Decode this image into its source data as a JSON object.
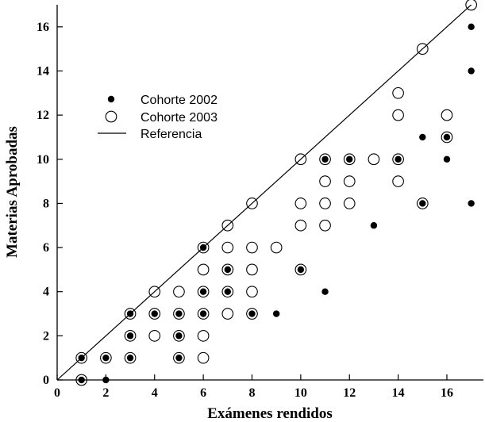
{
  "chart_data": {
    "type": "scatter",
    "title": "",
    "xlabel": "Exámenes rendidos",
    "ylabel": "Materias Aprobadas",
    "xlim": [
      0,
      17.5
    ],
    "ylim": [
      0,
      17
    ],
    "x_ticks": [
      0,
      2,
      4,
      6,
      8,
      10,
      12,
      14,
      16
    ],
    "y_ticks": [
      0,
      2,
      4,
      6,
      8,
      10,
      12,
      14,
      16
    ],
    "grid": false,
    "legend_position": "upper-left",
    "series": [
      {
        "name": "Cohorte 2002",
        "marker": "filled-circle",
        "color": "#000000",
        "points": [
          [
            1,
            0
          ],
          [
            1,
            1
          ],
          [
            2,
            0
          ],
          [
            2,
            1
          ],
          [
            3,
            1
          ],
          [
            3,
            2
          ],
          [
            3,
            3
          ],
          [
            4,
            3
          ],
          [
            5,
            1
          ],
          [
            5,
            2
          ],
          [
            5,
            3
          ],
          [
            6,
            3
          ],
          [
            6,
            4
          ],
          [
            6,
            6
          ],
          [
            7,
            4
          ],
          [
            7,
            5
          ],
          [
            8,
            3
          ],
          [
            9,
            3
          ],
          [
            10,
            5
          ],
          [
            11,
            4
          ],
          [
            11,
            10
          ],
          [
            12,
            10
          ],
          [
            13,
            7
          ],
          [
            14,
            10
          ],
          [
            15,
            8
          ],
          [
            15,
            11
          ],
          [
            16,
            10
          ],
          [
            16,
            11
          ],
          [
            17,
            8
          ],
          [
            17,
            14
          ],
          [
            17,
            16
          ]
        ]
      },
      {
        "name": "Cohorte 2003",
        "marker": "open-circle",
        "color": "#000000",
        "points": [
          [
            1,
            0
          ],
          [
            1,
            1
          ],
          [
            2,
            1
          ],
          [
            3,
            1
          ],
          [
            3,
            2
          ],
          [
            3,
            3
          ],
          [
            4,
            2
          ],
          [
            4,
            3
          ],
          [
            4,
            4
          ],
          [
            5,
            1
          ],
          [
            5,
            2
          ],
          [
            5,
            3
          ],
          [
            5,
            4
          ],
          [
            6,
            1
          ],
          [
            6,
            2
          ],
          [
            6,
            3
          ],
          [
            6,
            4
          ],
          [
            6,
            5
          ],
          [
            6,
            6
          ],
          [
            7,
            3
          ],
          [
            7,
            4
          ],
          [
            7,
            5
          ],
          [
            7,
            6
          ],
          [
            7,
            7
          ],
          [
            8,
            3
          ],
          [
            8,
            4
          ],
          [
            8,
            5
          ],
          [
            8,
            6
          ],
          [
            8,
            8
          ],
          [
            9,
            6
          ],
          [
            10,
            5
          ],
          [
            10,
            7
          ],
          [
            10,
            8
          ],
          [
            10,
            10
          ],
          [
            11,
            7
          ],
          [
            11,
            8
          ],
          [
            11,
            9
          ],
          [
            11,
            10
          ],
          [
            12,
            8
          ],
          [
            12,
            9
          ],
          [
            12,
            10
          ],
          [
            13,
            10
          ],
          [
            14,
            9
          ],
          [
            14,
            10
          ],
          [
            14,
            12
          ],
          [
            14,
            13
          ],
          [
            15,
            8
          ],
          [
            15,
            15
          ],
          [
            16,
            11
          ],
          [
            16,
            12
          ],
          [
            17,
            17
          ]
        ]
      }
    ],
    "reference_line": {
      "name": "Referencia",
      "from": [
        0,
        0
      ],
      "to": [
        17.5,
        17.5
      ]
    }
  }
}
